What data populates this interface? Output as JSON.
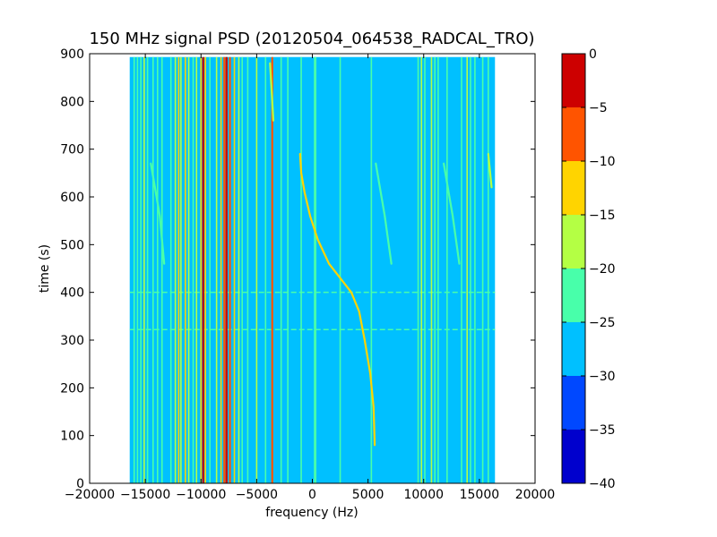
{
  "chart_data": {
    "type": "heatmap",
    "title": "150 MHz signal PSD (20120504_064538_RADCAL_TRO)",
    "xlabel": "frequency (Hz)",
    "ylabel": "time (s)",
    "xlim": [
      -20000,
      20000
    ],
    "ylim": [
      0,
      900
    ],
    "xticks": [
      -20000,
      -15000,
      -10000,
      -5000,
      0,
      5000,
      10000,
      15000,
      20000
    ],
    "xtick_labels": [
      "−20000",
      "−15000",
      "−10000",
      "−5000",
      "0",
      "5000",
      "10000",
      "15000",
      "20000"
    ],
    "yticks": [
      0,
      100,
      200,
      300,
      400,
      500,
      600,
      700,
      800,
      900
    ],
    "ytick_labels": [
      "0",
      "100",
      "200",
      "300",
      "400",
      "500",
      "600",
      "700",
      "800",
      "900"
    ],
    "data_extent": {
      "freq_min": -16400,
      "freq_max": 16400,
      "time_min": 0,
      "time_max": 893
    },
    "background_level_db": -28,
    "colorbar": {
      "levels": [
        -40,
        -35,
        -30,
        -25,
        -20,
        -15,
        -10,
        -5,
        0
      ],
      "tick_labels": [
        "−40",
        "−35",
        "−30",
        "−25",
        "−20",
        "−15",
        "−10",
        "−5",
        "0"
      ],
      "colors": [
        "#0000cd",
        "#0048ff",
        "#00c0ff",
        "#48ffaa",
        "#b4ff44",
        "#ffd400",
        "#ff5400",
        "#cd0000"
      ]
    },
    "vertical_lines": [
      {
        "freq": -16000,
        "level": -22
      },
      {
        "freq": -15700,
        "level": -22
      },
      {
        "freq": -15400,
        "level": -22
      },
      {
        "freq": -15100,
        "level": -18
      },
      {
        "freq": -14800,
        "level": -22
      },
      {
        "freq": -14300,
        "level": -22
      },
      {
        "freq": -13900,
        "level": -22
      },
      {
        "freq": -13500,
        "level": -22
      },
      {
        "freq": -12700,
        "level": -22
      },
      {
        "freq": -12300,
        "level": -18
      },
      {
        "freq": -12000,
        "level": -12
      },
      {
        "freq": -11800,
        "level": -18
      },
      {
        "freq": -11400,
        "level": -12
      },
      {
        "freq": -11100,
        "level": -18
      },
      {
        "freq": -10700,
        "level": -22
      },
      {
        "freq": -10400,
        "level": -18
      },
      {
        "freq": -10000,
        "level": -12
      },
      {
        "freq": -9800,
        "level": -3
      },
      {
        "freq": -9600,
        "level": -12
      },
      {
        "freq": -9200,
        "level": -22
      },
      {
        "freq": -8600,
        "level": -18
      },
      {
        "freq": -8200,
        "level": -12
      },
      {
        "freq": -7900,
        "level": -7
      },
      {
        "freq": -7700,
        "level": -3
      },
      {
        "freq": -7400,
        "level": -7
      },
      {
        "freq": -7000,
        "level": -12
      },
      {
        "freq": -6600,
        "level": -18
      },
      {
        "freq": -6300,
        "level": -22
      },
      {
        "freq": -5800,
        "level": -22
      },
      {
        "freq": -5000,
        "level": -18
      },
      {
        "freq": -4200,
        "level": -22
      },
      {
        "freq": -3600,
        "level": -7
      },
      {
        "freq": -2800,
        "level": -22
      },
      {
        "freq": -2200,
        "level": -22
      },
      {
        "freq": -1000,
        "level": -22
      },
      {
        "freq": 200,
        "level": -22
      },
      {
        "freq": 300,
        "level": -22
      },
      {
        "freq": 2500,
        "level": -22
      },
      {
        "freq": 5300,
        "level": -22
      },
      {
        "freq": 9500,
        "level": -22
      },
      {
        "freq": 9800,
        "level": -18
      },
      {
        "freq": 10100,
        "level": -22
      },
      {
        "freq": 10700,
        "level": -18
      },
      {
        "freq": 11000,
        "level": -22
      },
      {
        "freq": 11300,
        "level": -22
      },
      {
        "freq": 12100,
        "level": -22
      },
      {
        "freq": 13400,
        "level": -22
      },
      {
        "freq": 13900,
        "level": -18
      },
      {
        "freq": 14200,
        "level": -22
      },
      {
        "freq": 14600,
        "level": -22
      },
      {
        "freq": 15300,
        "level": -22
      },
      {
        "freq": 15800,
        "level": -22
      }
    ],
    "chirps": [
      {
        "name": "main",
        "level": -15,
        "points": [
          [
            -1100,
            690
          ],
          [
            -1000,
            650
          ],
          [
            -700,
            610
          ],
          [
            -200,
            560
          ],
          [
            500,
            510
          ],
          [
            1500,
            460
          ],
          [
            2500,
            430
          ],
          [
            3500,
            400
          ],
          [
            4200,
            360
          ],
          [
            4700,
            300
          ],
          [
            5200,
            230
          ],
          [
            5500,
            160
          ],
          [
            5600,
            80
          ]
        ]
      },
      {
        "level": -22,
        "points": [
          [
            -14500,
            670
          ],
          [
            -13700,
            560
          ],
          [
            -13300,
            460
          ]
        ]
      },
      {
        "level": -22,
        "points": [
          [
            5700,
            670
          ],
          [
            6500,
            560
          ],
          [
            7100,
            460
          ]
        ]
      },
      {
        "level": -22,
        "points": [
          [
            11800,
            670
          ],
          [
            12600,
            560
          ],
          [
            13200,
            460
          ]
        ]
      },
      {
        "level": -18,
        "points": [
          [
            -3800,
            880
          ],
          [
            -3500,
            760
          ]
        ]
      },
      {
        "level": -20,
        "points": [
          [
            15800,
            690
          ],
          [
            16100,
            620
          ]
        ]
      }
    ],
    "horizontal_lines": [
      {
        "time": 400,
        "level": -22
      },
      {
        "time": 322,
        "level": -22
      }
    ]
  }
}
